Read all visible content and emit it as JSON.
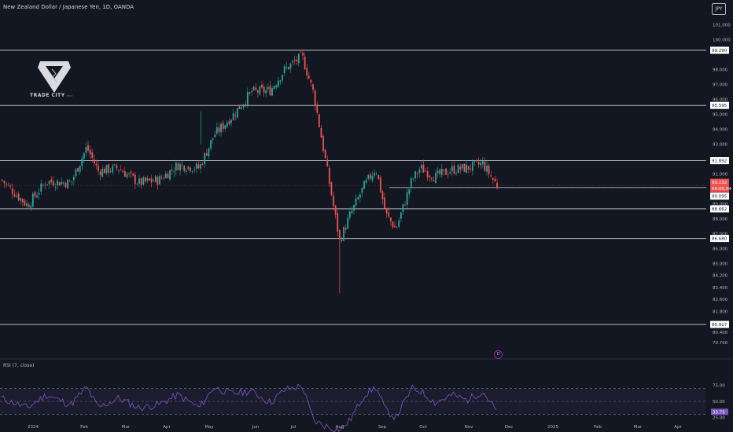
{
  "header": {
    "symbol_title": "New Zealand Dollar / Japanese Yen, 1D, OANDA",
    "currency": "JPY"
  },
  "logo": {
    "name": "TRADE CITY",
    "suffix": "PRO"
  },
  "colors": {
    "background": "#131722",
    "up": "#26a69a",
    "down": "#ef5350",
    "rsi": "#7e57c2",
    "level_line": "#d1d4dc",
    "axis_text": "#b2b5be"
  },
  "price_axis": {
    "ticks": [
      "101.000",
      "100.000",
      "98.000",
      "97.000",
      "96.000",
      "95.000",
      "94.000",
      "93.000",
      "91.000",
      "89.000",
      "88.000",
      "87.000",
      "86.000",
      "85.000",
      "84.200",
      "83.400",
      "82.600",
      "81.800",
      "80.400",
      "79.700"
    ]
  },
  "level_tags": [
    "99.290",
    "95.595",
    "91.892",
    "90.232",
    "04:05:04",
    "90.095",
    "88.662",
    "86.680",
    "80.917"
  ],
  "rsi": {
    "label": "RSI (7, close)",
    "axis_ticks": [
      "75.00",
      "50.00",
      "25.00",
      "0.00"
    ],
    "current_value": "33.75"
  },
  "time_axis": {
    "labels": [
      "2024",
      "Feb",
      "Mar",
      "Apr",
      "May",
      "Jun",
      "Jul",
      "Aug",
      "Sep",
      "Oct",
      "Nov",
      "Dec",
      "2025",
      "Feb",
      "Mar",
      "Apr"
    ]
  },
  "dividend_marker": "D",
  "chart_data": {
    "type": "candlestick",
    "title": "New Zealand Dollar / Japanese Yen, 1D, OANDA",
    "ylim": [
      79.5,
      101.5
    ],
    "horizontal_levels": [
      99.29,
      95.595,
      91.892,
      88.662,
      86.68,
      80.917
    ],
    "partial_levels": [
      90.095
    ],
    "last_price": 90.232,
    "price_path": [
      {
        "date": "2023-12-15",
        "price": 90.6
      },
      {
        "date": "2024-01-02",
        "price": 88.9
      },
      {
        "date": "2024-01-15",
        "price": 90.5
      },
      {
        "date": "2024-02-01",
        "price": 90.4
      },
      {
        "date": "2024-02-12",
        "price": 92.8
      },
      {
        "date": "2024-02-20",
        "price": 91.2
      },
      {
        "date": "2024-03-05",
        "price": 91.4
      },
      {
        "date": "2024-03-19",
        "price": 90.4
      },
      {
        "date": "2024-04-02",
        "price": 90.6
      },
      {
        "date": "2024-04-15",
        "price": 91.6
      },
      {
        "date": "2024-04-30",
        "price": 91.4
      },
      {
        "date": "2024-05-10",
        "price": 93.6
      },
      {
        "date": "2024-05-22",
        "price": 94.8
      },
      {
        "date": "2024-06-05",
        "price": 96.5
      },
      {
        "date": "2024-06-18",
        "price": 96.6
      },
      {
        "date": "2024-06-28",
        "price": 98.0
      },
      {
        "date": "2024-07-10",
        "price": 98.9
      },
      {
        "date": "2024-07-18",
        "price": 96.4
      },
      {
        "date": "2024-07-26",
        "price": 92.0
      },
      {
        "date": "2024-08-05",
        "price": 86.5
      },
      {
        "date": "2024-08-12",
        "price": 88.2
      },
      {
        "date": "2024-08-22",
        "price": 90.2
      },
      {
        "date": "2024-08-30",
        "price": 91.4
      },
      {
        "date": "2024-09-06",
        "price": 88.3
      },
      {
        "date": "2024-09-13",
        "price": 87.3
      },
      {
        "date": "2024-09-24",
        "price": 90.6
      },
      {
        "date": "2024-09-30",
        "price": 91.4
      },
      {
        "date": "2024-10-10",
        "price": 90.8
      },
      {
        "date": "2024-10-22",
        "price": 91.3
      },
      {
        "date": "2024-11-01",
        "price": 91.4
      },
      {
        "date": "2024-11-12",
        "price": 91.7
      },
      {
        "date": "2024-11-22",
        "price": 90.2
      }
    ],
    "rsi_path": [
      {
        "date": "2023-12-15",
        "value": 55
      },
      {
        "date": "2024-01-02",
        "value": 40
      },
      {
        "date": "2024-01-15",
        "value": 60
      },
      {
        "date": "2024-02-01",
        "value": 45
      },
      {
        "date": "2024-02-12",
        "value": 72
      },
      {
        "date": "2024-02-20",
        "value": 40
      },
      {
        "date": "2024-03-05",
        "value": 55
      },
      {
        "date": "2024-03-19",
        "value": 40
      },
      {
        "date": "2024-04-02",
        "value": 45
      },
      {
        "date": "2024-04-15",
        "value": 60
      },
      {
        "date": "2024-04-30",
        "value": 40
      },
      {
        "date": "2024-05-10",
        "value": 72
      },
      {
        "date": "2024-05-22",
        "value": 62
      },
      {
        "date": "2024-06-05",
        "value": 66
      },
      {
        "date": "2024-06-18",
        "value": 48
      },
      {
        "date": "2024-06-28",
        "value": 68
      },
      {
        "date": "2024-07-10",
        "value": 74
      },
      {
        "date": "2024-07-18",
        "value": 20
      },
      {
        "date": "2024-07-26",
        "value": 12
      },
      {
        "date": "2024-08-05",
        "value": 5
      },
      {
        "date": "2024-08-12",
        "value": 20
      },
      {
        "date": "2024-08-22",
        "value": 60
      },
      {
        "date": "2024-08-30",
        "value": 72
      },
      {
        "date": "2024-09-06",
        "value": 36
      },
      {
        "date": "2024-09-13",
        "value": 25
      },
      {
        "date": "2024-09-24",
        "value": 70
      },
      {
        "date": "2024-09-30",
        "value": 66
      },
      {
        "date": "2024-10-10",
        "value": 48
      },
      {
        "date": "2024-10-22",
        "value": 60
      },
      {
        "date": "2024-11-01",
        "value": 52
      },
      {
        "date": "2024-11-12",
        "value": 66
      },
      {
        "date": "2024-11-22",
        "value": 33.75
      }
    ],
    "rsi_bands": [
      70,
      50,
      30
    ],
    "rsi_ylim": [
      0,
      100
    ],
    "grid": false
  }
}
